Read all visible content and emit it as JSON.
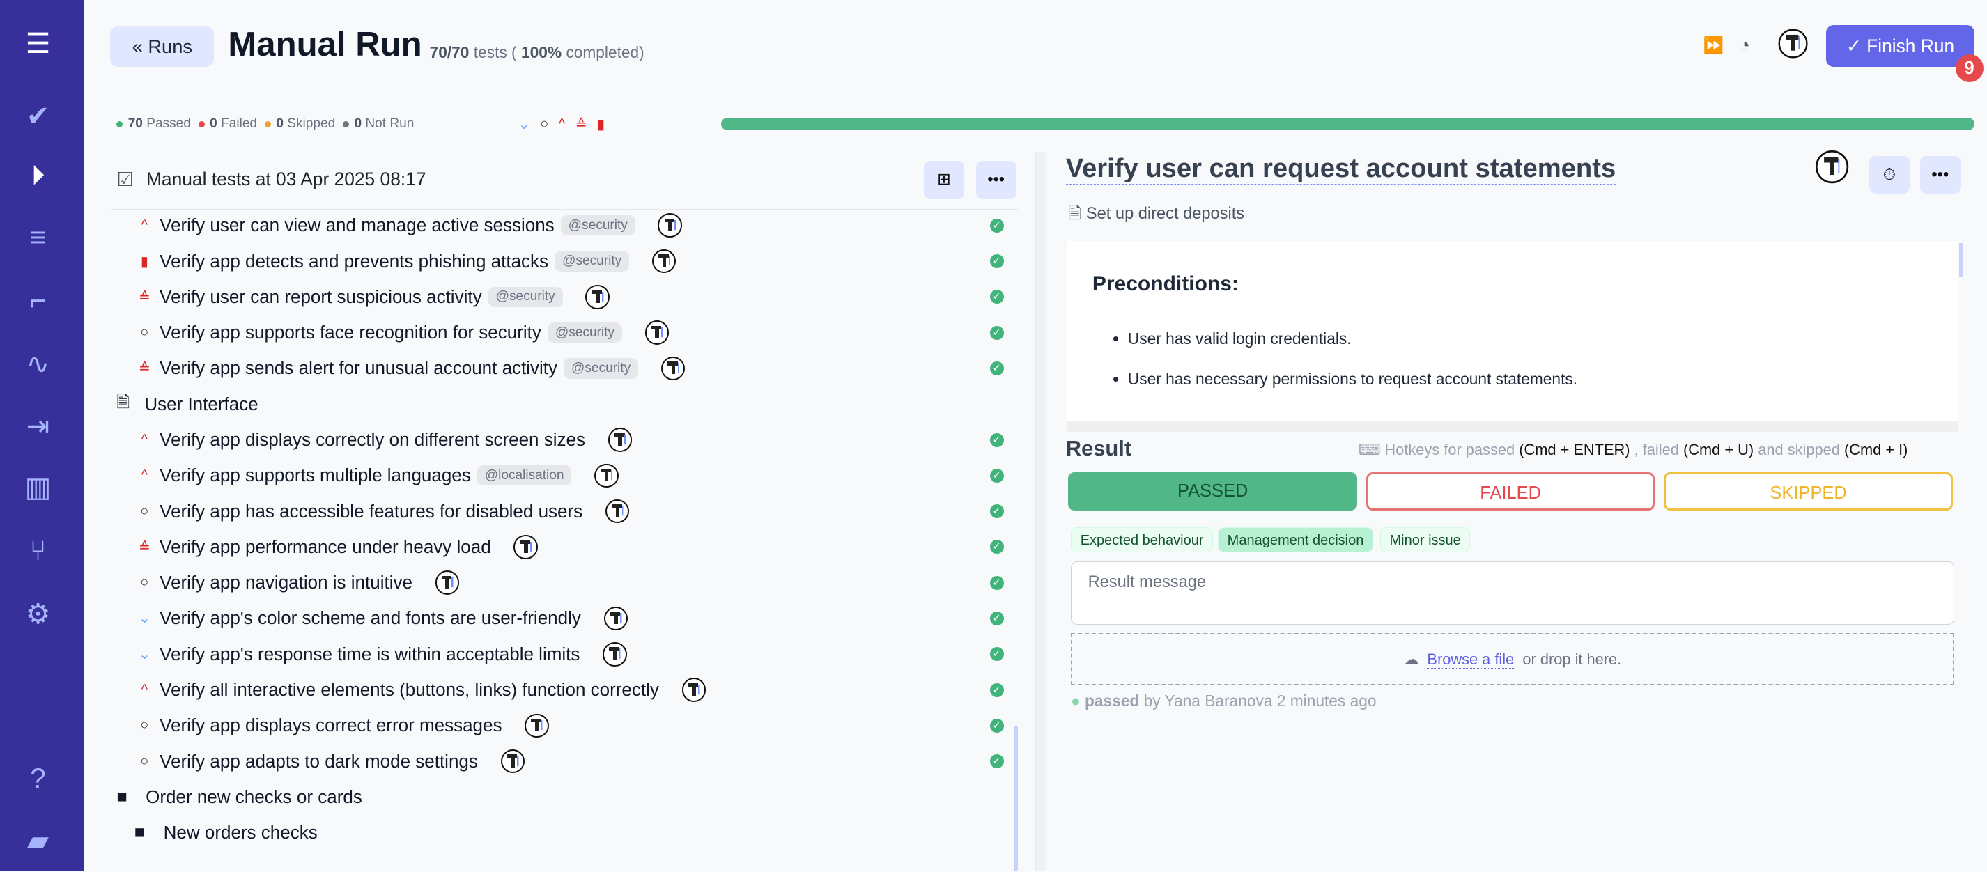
{
  "header": {
    "back_label": "Runs",
    "title": "Manual Run",
    "count": "70/70",
    "count_suffix": "tests (",
    "percent": "100%",
    "percent_suffix": "completed)",
    "finish_label": "Finish Run",
    "finish_badge": "9"
  },
  "stats": [
    {
      "n": "70",
      "label": "Passed",
      "color": "#40b47a"
    },
    {
      "n": "0",
      "label": "Failed",
      "color": "#e5484d"
    },
    {
      "n": "0",
      "label": "Skipped",
      "color": "#f0a030"
    },
    {
      "n": "0",
      "label": "Not Run",
      "color": "#6b7280"
    }
  ],
  "progress": {
    "passed_percent": 100,
    "color": "#52b788"
  },
  "left": {
    "title": "Manual tests at 03 Apr 2025 08:17",
    "rows": [
      {
        "kind": "test",
        "prio": "high",
        "title": "Verify user can view and manage active sessions",
        "tag": "@security",
        "status": "passed"
      },
      {
        "kind": "test",
        "prio": "critical",
        "title": "Verify app detects and prevents phishing attacks",
        "tag": "@security",
        "status": "passed"
      },
      {
        "kind": "test",
        "prio": "highest",
        "title": "Verify user can report suspicious activity",
        "tag": "@security",
        "status": "passed"
      },
      {
        "kind": "test",
        "prio": "normal",
        "title": "Verify app supports face recognition for security",
        "tag": "@security",
        "status": "passed"
      },
      {
        "kind": "test",
        "prio": "highest",
        "title": "Verify app sends alert for unusual account activity",
        "tag": "@security",
        "status": "passed"
      },
      {
        "kind": "suite",
        "title": "User Interface"
      },
      {
        "kind": "test",
        "prio": "high",
        "title": "Verify app displays correctly on different screen sizes",
        "status": "passed"
      },
      {
        "kind": "test",
        "prio": "high",
        "title": "Verify app supports multiple languages",
        "tag": "@localisation",
        "status": "passed"
      },
      {
        "kind": "test",
        "prio": "normal",
        "title": "Verify app has accessible features for disabled users",
        "status": "passed"
      },
      {
        "kind": "test",
        "prio": "highest",
        "title": "Verify app performance under heavy load",
        "status": "passed"
      },
      {
        "kind": "test",
        "prio": "normal",
        "title": "Verify app navigation is intuitive",
        "status": "passed"
      },
      {
        "kind": "test",
        "prio": "low",
        "title": "Verify app's color scheme and fonts are user-friendly",
        "status": "passed"
      },
      {
        "kind": "test",
        "prio": "low",
        "title": "Verify app's response time is within acceptable limits",
        "status": "passed"
      },
      {
        "kind": "test",
        "prio": "high",
        "title": "Verify all interactive elements (buttons, links) function correctly",
        "status": "passed"
      },
      {
        "kind": "test",
        "prio": "normal",
        "title": "Verify app displays correct error messages",
        "status": "passed"
      },
      {
        "kind": "test",
        "prio": "normal",
        "title": "Verify app adapts to dark mode settings",
        "status": "passed"
      },
      {
        "kind": "folder",
        "level": 0,
        "title": "Order new checks or cards"
      },
      {
        "kind": "folder",
        "level": 1,
        "title": "New orders checks"
      }
    ]
  },
  "right": {
    "title": "Verify user can request account statements",
    "suite": "Set up direct deposits",
    "pre_heading": "Preconditions:",
    "pre_items": [
      "User has valid login credentials.",
      "User has necessary permissions to request account statements."
    ],
    "result_label": "Result",
    "hotkeys": {
      "a": "Hotkeys for passed",
      "k1": "(Cmd + ENTER)",
      "b": ", failed",
      "k2": "(Cmd + U)",
      "c": "and skipped",
      "k3": "(Cmd + I)"
    },
    "passed": "PASSED",
    "failed": "FAILED",
    "skipped": "SKIPPED",
    "chips": [
      "Expected behaviour",
      "Management decision",
      "Minor issue"
    ],
    "message_placeholder": "Result message",
    "browse": "Browse a file",
    "drop": "or drop it here.",
    "by_status": "passed",
    "by_text": "by Yana Baranova 2 minutes ago"
  }
}
